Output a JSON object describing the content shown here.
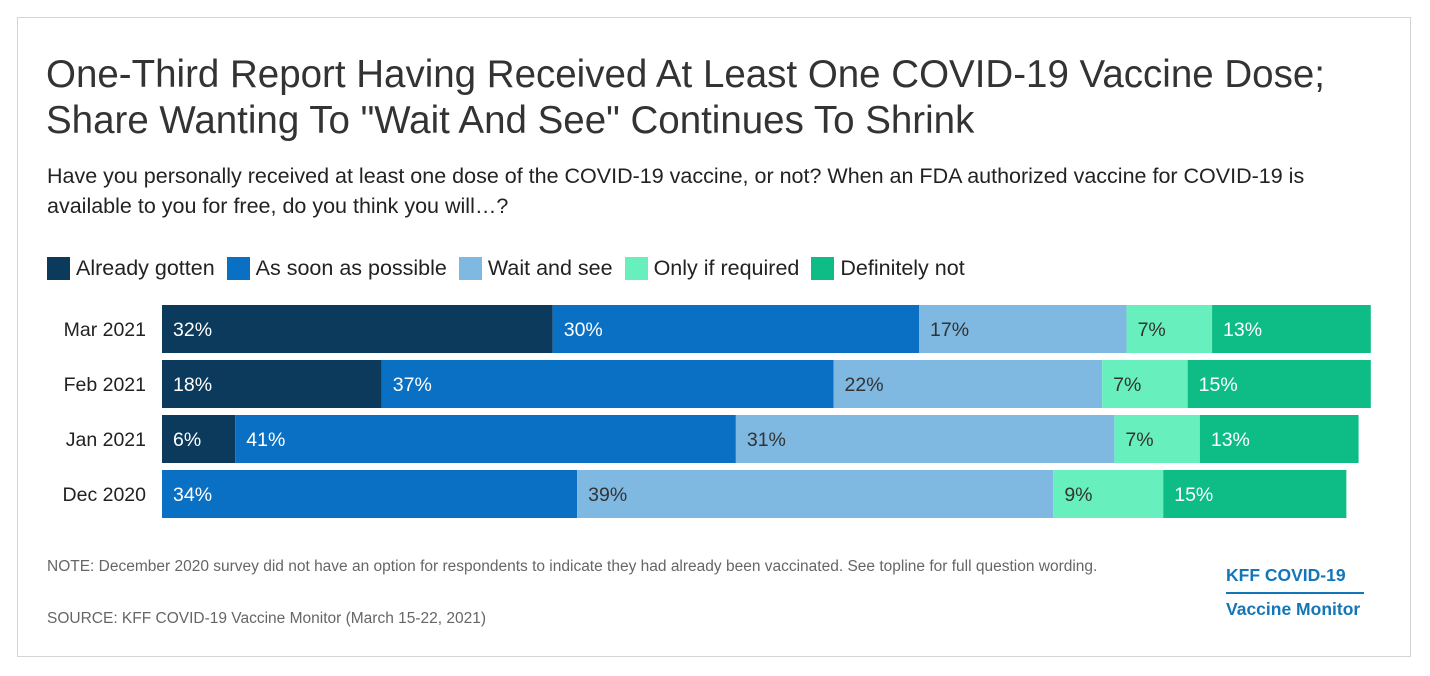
{
  "title": "One-Third Report Having Received At Least One COVID-19 Vaccine Dose; Share Wanting To \"Wait And See\" Continues To Shrink",
  "subtitle": "Have you personally received at least one dose of the COVID-19 vaccine, or not? When an FDA authorized vaccine for COVID-19 is available to you for free, do you think you will…?",
  "legend": [
    {
      "label": "Already gotten",
      "color": "#0b3a5c"
    },
    {
      "label": "As soon as possible",
      "color": "#0a70c3"
    },
    {
      "label": "Wait and see",
      "color": "#7fb8e1"
    },
    {
      "label": "Only if required",
      "color": "#67f0be"
    },
    {
      "label": "Definitely not",
      "color": "#0ebd86"
    }
  ],
  "chart_data": {
    "type": "bar",
    "orientation": "horizontal",
    "stacked": true,
    "title": "One-Third Report Having Received At Least One COVID-19 Vaccine Dose; Share Wanting To \"Wait And See\" Continues To Shrink",
    "xlabel": "",
    "ylabel": "",
    "xlim": [
      0,
      100
    ],
    "grid": false,
    "legend_position": "top",
    "categories": [
      "Mar 2021",
      "Feb 2021",
      "Jan 2021",
      "Dec 2020"
    ],
    "series": [
      {
        "name": "Already gotten",
        "color": "#0b3a5c",
        "values": [
          32,
          18,
          6,
          null
        ],
        "labels": [
          "32%",
          "18%",
          "6%",
          ""
        ]
      },
      {
        "name": "As soon as possible",
        "color": "#0a70c3",
        "values": [
          30,
          37,
          41,
          34
        ],
        "labels": [
          "30%",
          "37%",
          "41%",
          "34%"
        ]
      },
      {
        "name": "Wait and see",
        "color": "#7fb8e1",
        "values": [
          17,
          22,
          31,
          39
        ],
        "labels": [
          "17%",
          "22%",
          "31%",
          "39%"
        ]
      },
      {
        "name": "Only if required",
        "color": "#67f0be",
        "values": [
          7,
          7,
          7,
          9
        ],
        "labels": [
          "7%",
          "7%",
          "7%",
          "9%"
        ]
      },
      {
        "name": "Definitely not",
        "color": "#0ebd86",
        "values": [
          13,
          15,
          13,
          15
        ],
        "labels": [
          "13%",
          "15%",
          "13%",
          "15%"
        ]
      }
    ]
  },
  "note": "NOTE: December 2020 survey did not have an option for respondents to indicate they had already been vaccinated. See topline for full question wording.",
  "source": "SOURCE: KFF COVID-19 Vaccine Monitor (March 15-22, 2021)",
  "logo": {
    "line1": "KFF COVID-19",
    "line2": "Vaccine Monitor"
  }
}
